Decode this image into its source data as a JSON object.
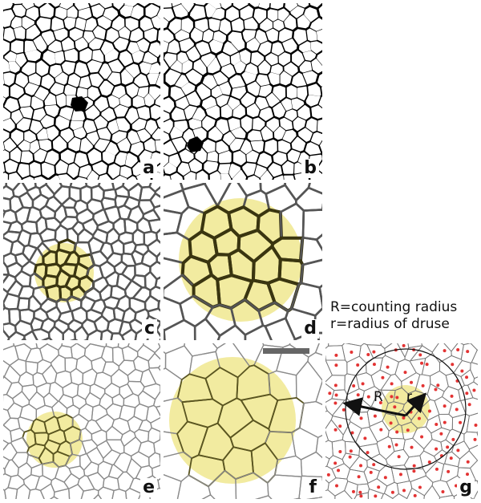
{
  "panels": [
    {
      "id": "a",
      "label": "a",
      "style": "binary"
    },
    {
      "id": "b",
      "label": "b",
      "style": "binary"
    },
    {
      "id": "c",
      "label": "c",
      "style": "dark-gray"
    },
    {
      "id": "d",
      "label": "d",
      "style": "dark-gray"
    },
    {
      "id": "e",
      "label": "e",
      "style": "light-gray"
    },
    {
      "id": "f",
      "label": "f",
      "style": "light-gray"
    },
    {
      "id": "g",
      "label": "g",
      "style": "voronoi"
    }
  ],
  "legend": {
    "line1": "R=counting radius",
    "line2": "r=radius of druse"
  },
  "panel_g": {
    "big_radius_label": "R",
    "small_radius_label": "r"
  },
  "colors": {
    "druse_highlight": "#f2eba0",
    "cell_border_black": "#000000",
    "cell_border_gray": "#555555",
    "cell_border_light": "#8a8a8a",
    "cell_center_dot": "#e33333",
    "scale_bar": "#666666"
  }
}
